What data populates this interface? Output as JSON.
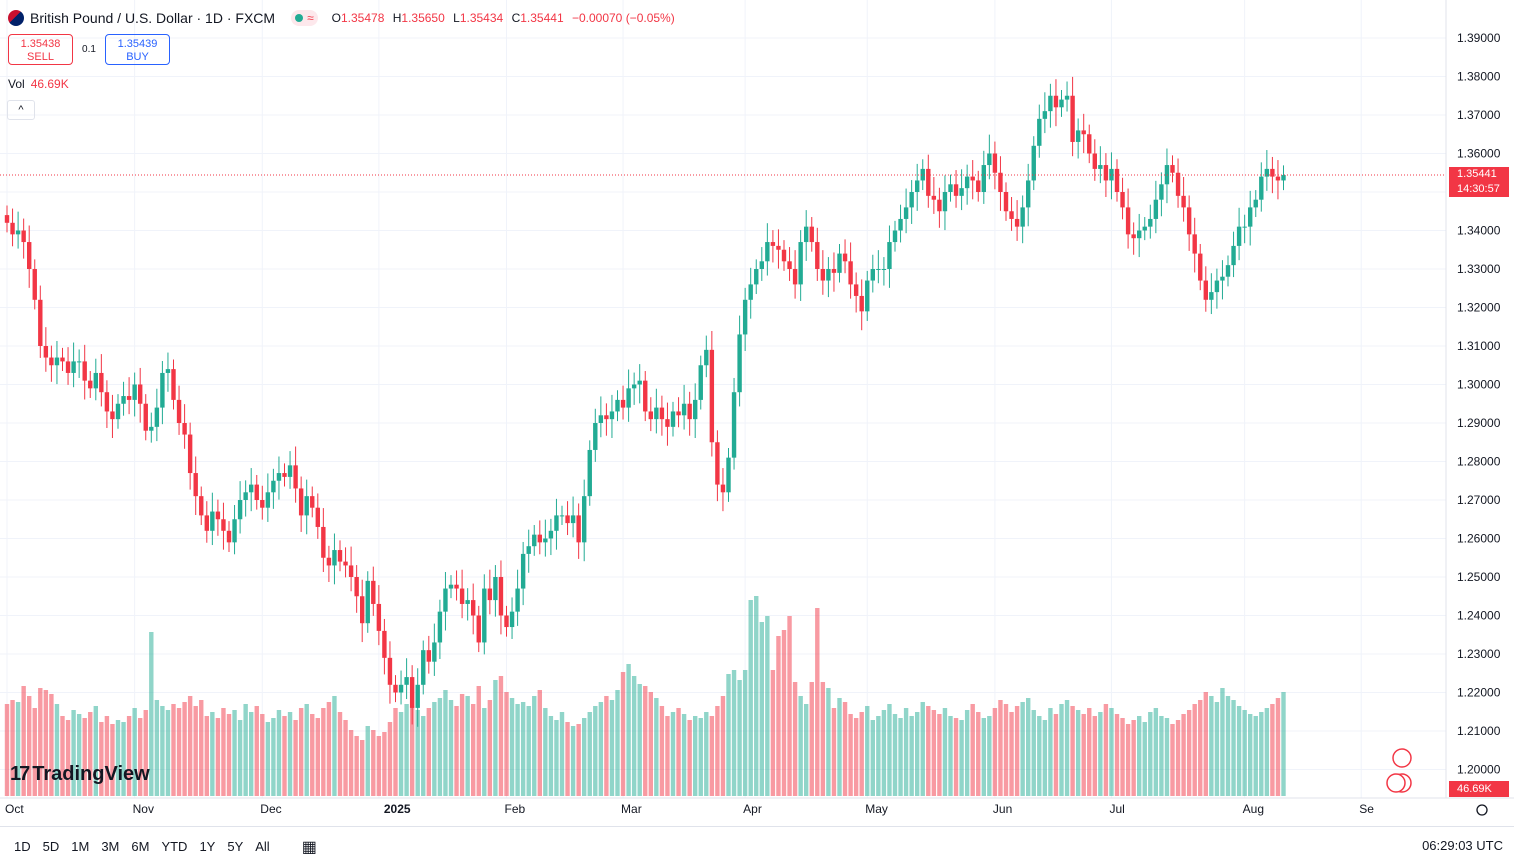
{
  "header": {
    "title": "British Pound / U.S. Dollar · 1D · FXCM",
    "ohlc": [
      {
        "k": "O",
        "v": "1.35478"
      },
      {
        "k": "H",
        "v": "1.35650"
      },
      {
        "k": "L",
        "v": "1.35434"
      },
      {
        "k": "C",
        "v": "1.35441"
      }
    ],
    "change": "−0.00070 (−0.05%)"
  },
  "trade": {
    "sell_price": "1.35438",
    "sell_label": "SELL",
    "spread": "0.1",
    "buy_price": "1.35439",
    "buy_label": "BUY"
  },
  "volume": {
    "label": "Vol",
    "value": "46.69K"
  },
  "price_tag": {
    "price": "1.35441",
    "countdown": "14:30:57"
  },
  "volume_tag": "46.69K",
  "logo": "TradingView",
  "bottom": {
    "ranges": [
      "1D",
      "5D",
      "1M",
      "3M",
      "6M",
      "YTD",
      "1Y",
      "5Y",
      "All"
    ],
    "clock": "06:29:03 UTC"
  },
  "colors": {
    "up": "#22ab94",
    "down": "#f23645",
    "grid": "#f0f3fa",
    "text": "#131722"
  },
  "chart_data": {
    "type": "candlestick",
    "symbol": "GBPUSD",
    "y_ticks": [
      "1.20000",
      "1.21000",
      "1.22000",
      "1.23000",
      "1.24000",
      "1.25000",
      "1.26000",
      "1.27000",
      "1.28000",
      "1.29000",
      "1.30000",
      "1.31000",
      "1.32000",
      "1.33000",
      "1.34000",
      "1.35000",
      "1.36000",
      "1.37000",
      "1.38000",
      "1.39000"
    ],
    "ylim": [
      1.1925,
      1.3955
    ],
    "x_labels": [
      "Oct",
      "Nov",
      "Dec",
      "2025",
      "Feb",
      "Mar",
      "Apr",
      "May",
      "Jun",
      "Jul",
      "Aug",
      "Se"
    ],
    "x_label_candle_index": [
      0,
      23,
      46,
      67,
      90,
      111,
      133,
      155,
      178,
      199,
      223,
      244
    ],
    "last_price": 1.35441,
    "close_series": [
      1.342,
      1.339,
      1.34,
      1.337,
      1.33,
      1.322,
      1.31,
      1.307,
      1.305,
      1.307,
      1.306,
      1.303,
      1.306,
      1.306,
      1.301,
      1.299,
      1.303,
      1.298,
      1.293,
      1.291,
      1.295,
      1.297,
      1.296,
      1.3,
      1.295,
      1.288,
      1.289,
      1.294,
      1.303,
      1.304,
      1.296,
      1.29,
      1.287,
      1.277,
      1.271,
      1.266,
      1.262,
      1.267,
      1.265,
      1.262,
      1.259,
      1.265,
      1.27,
      1.272,
      1.274,
      1.27,
      1.268,
      1.272,
      1.275,
      1.277,
      1.276,
      1.279,
      1.273,
      1.266,
      1.271,
      1.268,
      1.263,
      1.255,
      1.253,
      1.257,
      1.254,
      1.253,
      1.25,
      1.245,
      1.238,
      1.249,
      1.243,
      1.236,
      1.229,
      1.222,
      1.22,
      1.222,
      1.224,
      1.216,
      1.222,
      1.231,
      1.228,
      1.233,
      1.241,
      1.247,
      1.248,
      1.247,
      1.243,
      1.244,
      1.24,
      1.233,
      1.247,
      1.244,
      1.25,
      1.24,
      1.237,
      1.241,
      1.247,
      1.256,
      1.258,
      1.261,
      1.259,
      1.26,
      1.262,
      1.266,
      1.266,
      1.264,
      1.266,
      1.259,
      1.271,
      1.283,
      1.29,
      1.292,
      1.291,
      1.293,
      1.296,
      1.294,
      1.299,
      1.3,
      1.301,
      1.293,
      1.291,
      1.294,
      1.291,
      1.289,
      1.293,
      1.292,
      1.295,
      1.291,
      1.296,
      1.305,
      1.309,
      1.285,
      1.274,
      1.272,
      1.281,
      1.298,
      1.313,
      1.322,
      1.326,
      1.33,
      1.332,
      1.337,
      1.336,
      1.335,
      1.332,
      1.33,
      1.326,
      1.337,
      1.341,
      1.337,
      1.33,
      1.327,
      1.33,
      1.329,
      1.334,
      1.332,
      1.326,
      1.323,
      1.319,
      1.327,
      1.33,
      1.33,
      1.33,
      1.337,
      1.34,
      1.343,
      1.346,
      1.35,
      1.353,
      1.356,
      1.349,
      1.348,
      1.345,
      1.35,
      1.352,
      1.349,
      1.351,
      1.354,
      1.353,
      1.35,
      1.357,
      1.36,
      1.355,
      1.35,
      1.345,
      1.343,
      1.341,
      1.346,
      1.353,
      1.362,
      1.369,
      1.371,
      1.375,
      1.372,
      1.374,
      1.375,
      1.363,
      1.366,
      1.365,
      1.36,
      1.356,
      1.357,
      1.353,
      1.356,
      1.35,
      1.346,
      1.339,
      1.338,
      1.34,
      1.341,
      1.343,
      1.348,
      1.352,
      1.357,
      1.355,
      1.349,
      1.346,
      1.339,
      1.334,
      1.327,
      1.322,
      1.324,
      1.327,
      1.328,
      1.331,
      1.336,
      1.341,
      1.341,
      1.346,
      1.348,
      1.354,
      1.356,
      1.354,
      1.353,
      1.3544
    ],
    "volume_relative": [
      0.46,
      0.48,
      0.47,
      0.55,
      0.5,
      0.44,
      0.54,
      0.53,
      0.51,
      0.46,
      0.4,
      0.38,
      0.43,
      0.41,
      0.39,
      0.42,
      0.45,
      0.37,
      0.4,
      0.36,
      0.38,
      0.37,
      0.4,
      0.44,
      0.39,
      0.43,
      0.82,
      0.48,
      0.45,
      0.43,
      0.46,
      0.44,
      0.47,
      0.5,
      0.45,
      0.48,
      0.4,
      0.42,
      0.39,
      0.44,
      0.41,
      0.43,
      0.38,
      0.46,
      0.42,
      0.45,
      0.41,
      0.37,
      0.39,
      0.43,
      0.4,
      0.42,
      0.38,
      0.44,
      0.46,
      0.41,
      0.39,
      0.44,
      0.47,
      0.5,
      0.42,
      0.38,
      0.33,
      0.3,
      0.28,
      0.35,
      0.33,
      0.3,
      0.32,
      0.37,
      0.44,
      0.42,
      0.46,
      0.45,
      0.43,
      0.4,
      0.44,
      0.47,
      0.49,
      0.53,
      0.48,
      0.45,
      0.51,
      0.5,
      0.46,
      0.55,
      0.44,
      0.48,
      0.58,
      0.6,
      0.52,
      0.49,
      0.46,
      0.47,
      0.45,
      0.5,
      0.53,
      0.44,
      0.4,
      0.38,
      0.42,
      0.37,
      0.35,
      0.36,
      0.39,
      0.42,
      0.45,
      0.47,
      0.5,
      0.48,
      0.53,
      0.62,
      0.66,
      0.6,
      0.56,
      0.55,
      0.52,
      0.49,
      0.45,
      0.4,
      0.42,
      0.44,
      0.41,
      0.38,
      0.4,
      0.39,
      0.42,
      0.4,
      0.45,
      0.5,
      0.61,
      0.63,
      0.58,
      0.63,
      0.98,
      1.0,
      0.87,
      0.9,
      0.63,
      0.8,
      0.83,
      0.9,
      0.57,
      0.5,
      0.46,
      0.57,
      0.94,
      0.57,
      0.54,
      0.44,
      0.49,
      0.47,
      0.41,
      0.39,
      0.42,
      0.45,
      0.38,
      0.4,
      0.43,
      0.46,
      0.41,
      0.39,
      0.44,
      0.4,
      0.42,
      0.47,
      0.45,
      0.43,
      0.41,
      0.44,
      0.4,
      0.39,
      0.38,
      0.43,
      0.46,
      0.42,
      0.39,
      0.4,
      0.44,
      0.48,
      0.46,
      0.42,
      0.45,
      0.47,
      0.49,
      0.43,
      0.4,
      0.38,
      0.44,
      0.41,
      0.46,
      0.48,
      0.45,
      0.43,
      0.41,
      0.44,
      0.4,
      0.42,
      0.46,
      0.44,
      0.41,
      0.39,
      0.36,
      0.38,
      0.4,
      0.37,
      0.42,
      0.44,
      0.4,
      0.39,
      0.36,
      0.38,
      0.41,
      0.43,
      0.46,
      0.48,
      0.52,
      0.5,
      0.47,
      0.54,
      0.5,
      0.48,
      0.45,
      0.43,
      0.41,
      0.4,
      0.42,
      0.44,
      0.46,
      0.49,
      0.52,
      0.56,
      0.62,
      0.58,
      0.55,
      0.64,
      0.57,
      0.51,
      0.46,
      0.42,
      0.38,
      0.35,
      0.33,
      0.3,
      0.32
    ]
  }
}
